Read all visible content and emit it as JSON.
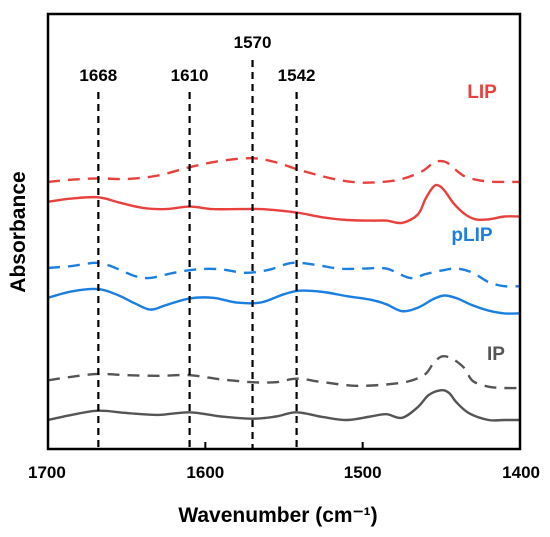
{
  "chart_data": {
    "type": "line",
    "title": "",
    "xlabel": "Wavenumber (cm⁻¹)",
    "ylabel": "Absorbance",
    "xlim": [
      1700,
      1400
    ],
    "x_reversed": true,
    "ylim": [
      0,
      1
    ],
    "y_ticks_shown": false,
    "grid": false,
    "x_ticks": [
      1700,
      1600,
      1500,
      1400
    ],
    "x_tick_labels": [
      "1700",
      "1600",
      "1500",
      "1400"
    ],
    "reference_lines": [
      {
        "x": 1668,
        "label": "1668"
      },
      {
        "x": 1610,
        "label": "1610"
      },
      {
        "x": 1570,
        "label": "1570"
      },
      {
        "x": 1542,
        "label": "1542"
      }
    ],
    "series_labels": [
      {
        "text": "LIP",
        "color": "#e8413d"
      },
      {
        "text": "pLIP",
        "color": "#1a7fe0"
      },
      {
        "text": "IP",
        "color": "#555555"
      }
    ],
    "series": [
      {
        "group": "LIP",
        "style": "dashed",
        "color": "#e8413d",
        "x": [
          1700,
          1685,
          1668,
          1650,
          1630,
          1610,
          1590,
          1570,
          1555,
          1540,
          1520,
          1505,
          1490,
          1475,
          1462,
          1455,
          1450,
          1445,
          1440,
          1435,
          1428,
          1420,
          1410,
          1400
        ],
        "y": [
          0.744,
          0.751,
          0.755,
          0.753,
          0.764,
          0.79,
          0.81,
          0.818,
          0.805,
          0.781,
          0.755,
          0.743,
          0.743,
          0.753,
          0.778,
          0.804,
          0.809,
          0.8,
          0.778,
          0.761,
          0.751,
          0.745,
          0.744,
          0.744
        ]
      },
      {
        "group": "LIP",
        "style": "solid",
        "color": "#e8413d",
        "x": [
          1700,
          1685,
          1668,
          1655,
          1640,
          1625,
          1610,
          1595,
          1580,
          1565,
          1550,
          1540,
          1525,
          1510,
          1495,
          1485,
          1475,
          1465,
          1460,
          1455,
          1452,
          1448,
          1442,
          1435,
          1428,
          1420,
          1410,
          1400
        ],
        "y": [
          0.682,
          0.692,
          0.696,
          0.68,
          0.663,
          0.659,
          0.667,
          0.659,
          0.659,
          0.659,
          0.653,
          0.647,
          0.633,
          0.625,
          0.623,
          0.623,
          0.616,
          0.642,
          0.692,
          0.729,
          0.733,
          0.717,
          0.676,
          0.643,
          0.627,
          0.627,
          0.636,
          0.636
        ]
      },
      {
        "group": "pLIP",
        "style": "dashed",
        "color": "#1a7fe0",
        "x": [
          1700,
          1685,
          1668,
          1655,
          1645,
          1635,
          1620,
          1605,
          1590,
          1575,
          1560,
          1545,
          1530,
          1515,
          1500,
          1485,
          1470,
          1460,
          1450,
          1440,
          1430,
          1420,
          1410,
          1400
        ],
        "y": [
          0.475,
          0.481,
          0.491,
          0.471,
          0.45,
          0.444,
          0.46,
          0.471,
          0.471,
          0.46,
          0.469,
          0.491,
          0.485,
          0.473,
          0.473,
          0.473,
          0.444,
          0.456,
          0.467,
          0.473,
          0.46,
          0.431,
          0.418,
          0.418
        ]
      },
      {
        "group": "pLIP",
        "style": "solid",
        "color": "#1a7fe0",
        "x": [
          1700,
          1685,
          1668,
          1655,
          1645,
          1635,
          1625,
          1610,
          1595,
          1580,
          1565,
          1550,
          1540,
          1525,
          1510,
          1495,
          1485,
          1475,
          1465,
          1455,
          1448,
          1440,
          1430,
          1420,
          1410,
          1400
        ],
        "y": [
          0.382,
          0.402,
          0.409,
          0.389,
          0.365,
          0.345,
          0.359,
          0.38,
          0.382,
          0.367,
          0.367,
          0.393,
          0.404,
          0.4,
          0.387,
          0.376,
          0.362,
          0.34,
          0.351,
          0.378,
          0.389,
          0.38,
          0.358,
          0.342,
          0.333,
          0.333
        ]
      },
      {
        "group": "IP",
        "style": "dashed",
        "color": "#555555",
        "x": [
          1700,
          1685,
          1668,
          1650,
          1630,
          1610,
          1590,
          1570,
          1555,
          1542,
          1525,
          1505,
          1485,
          1470,
          1460,
          1455,
          1450,
          1445,
          1440,
          1435,
          1430,
          1420,
          1410,
          1400
        ],
        "y": [
          0.124,
          0.135,
          0.144,
          0.14,
          0.138,
          0.14,
          0.127,
          0.118,
          0.118,
          0.129,
          0.118,
          0.107,
          0.111,
          0.122,
          0.144,
          0.178,
          0.198,
          0.196,
          0.182,
          0.16,
          0.122,
          0.104,
          0.1,
          0.1
        ]
      },
      {
        "group": "IP",
        "style": "solid",
        "color": "#555555",
        "x": [
          1700,
          1685,
          1668,
          1650,
          1630,
          1610,
          1590,
          1570,
          1555,
          1542,
          1525,
          1510,
          1495,
          1485,
          1475,
          1465,
          1458,
          1450,
          1445,
          1440,
          1432,
          1420,
          1410,
          1400
        ],
        "y": [
          0.0,
          0.016,
          0.029,
          0.022,
          0.016,
          0.024,
          0.011,
          0.004,
          0.011,
          0.024,
          0.009,
          0.0,
          0.011,
          0.018,
          0.007,
          0.04,
          0.078,
          0.093,
          0.084,
          0.053,
          0.02,
          0.0,
          0.0,
          0.0
        ]
      }
    ]
  }
}
